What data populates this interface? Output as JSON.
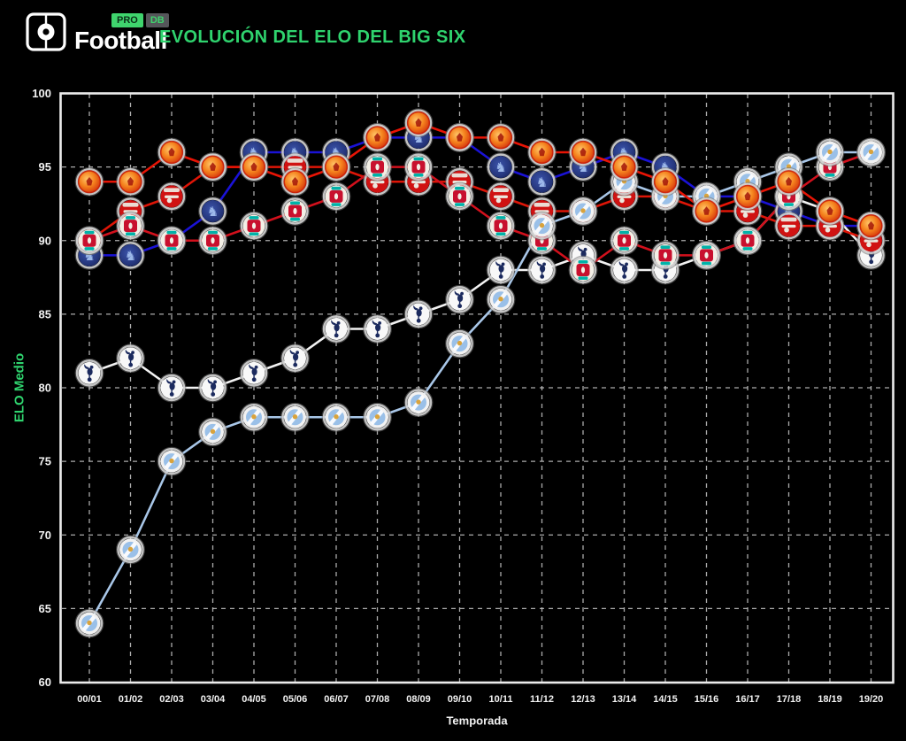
{
  "header": {
    "logo": {
      "badge_pro": "PRO",
      "badge_db": "DB",
      "wordmark": "Football"
    },
    "title": "EVOLUCIÓN DEL ELO DEL BIG SIX"
  },
  "colors": {
    "background": "#000000",
    "accent_green": "#2fd36e",
    "grid": "#c9c9c9",
    "frame": "#ececec",
    "tick_text": "#f2f2f2"
  },
  "chart_data": {
    "type": "line",
    "title": "EVOLUCIÓN DEL ELO DEL BIG SIX",
    "xlabel": "Temporada",
    "ylabel": "ELO Medio",
    "ylim": [
      60,
      100
    ],
    "yticks": [
      100,
      95,
      90,
      85,
      80,
      75,
      70,
      65,
      60
    ],
    "grid": true,
    "legend": "none - series identified by club crest markers",
    "categories": [
      "00/01",
      "01/02",
      "02/03",
      "03/04",
      "04/05",
      "05/06",
      "06/07",
      "07/08",
      "08/09",
      "09/10",
      "10/11",
      "11/12",
      "12/13",
      "13/14",
      "14/15",
      "15/16",
      "16/17",
      "17/18",
      "18/19",
      "19/20"
    ],
    "series": [
      {
        "id": "chelsea",
        "name": "Chelsea",
        "line_color": "#1a12d6",
        "marker": {
          "primary": "#26377e",
          "secondary": "#9cb8ea",
          "accent": "#26377e"
        },
        "values": [
          89,
          89,
          90,
          92,
          96,
          96,
          96,
          97,
          97,
          97,
          95,
          94,
          95,
          96,
          95,
          93,
          93,
          92,
          91,
          91
        ]
      },
      {
        "id": "tottenham",
        "name": "Tottenham Hotspur",
        "line_color": "#f2f2f2",
        "marker": {
          "primary": "#f8f8f8",
          "secondary": "#1b2a5e",
          "accent": "#1b2a5e"
        },
        "values": [
          81,
          82,
          80,
          80,
          81,
          82,
          84,
          84,
          85,
          86,
          88,
          88,
          89,
          88,
          88,
          89,
          90,
          93,
          92,
          89
        ]
      },
      {
        "id": "arsenal",
        "name": "Arsenal",
        "line_color": "#de1507",
        "marker": {
          "primary": "#d01212",
          "secondary": "#ece7de",
          "accent": "#ece7de"
        },
        "values": [
          90,
          92,
          93,
          95,
          95,
          95,
          95,
          94,
          94,
          94,
          93,
          92,
          92,
          93,
          93,
          92,
          92,
          91,
          91,
          90
        ]
      },
      {
        "id": "liverpool",
        "name": "Liverpool",
        "line_color": "#d2101c",
        "marker": {
          "primary": "#f3efe6",
          "secondary": "#c8102e",
          "accent": "#00b2a9"
        },
        "values": [
          90,
          91,
          90,
          90,
          91,
          92,
          93,
          95,
          95,
          93,
          91,
          90,
          88,
          90,
          89,
          89,
          90,
          93,
          95,
          96
        ]
      },
      {
        "id": "city",
        "name": "Manchester City",
        "line_color": "#a9c7e8",
        "marker": {
          "primary": "#f2f2f2",
          "secondary": "#9ac0e8",
          "accent": "#d9a33c"
        },
        "values": [
          64,
          69,
          75,
          77,
          78,
          78,
          78,
          78,
          79,
          83,
          86,
          91,
          92,
          94,
          93,
          93,
          94,
          95,
          96,
          96
        ]
      },
      {
        "id": "united",
        "name": "Manchester United",
        "line_color": "#e81405",
        "marker": {
          "primary": "#f5831e",
          "secondary": "#cc2008",
          "accent": "#9e0d05"
        },
        "values": [
          94,
          94,
          96,
          95,
          95,
          94,
          95,
          97,
          98,
          97,
          97,
          96,
          96,
          95,
          94,
          92,
          93,
          94,
          92,
          91
        ]
      }
    ]
  }
}
